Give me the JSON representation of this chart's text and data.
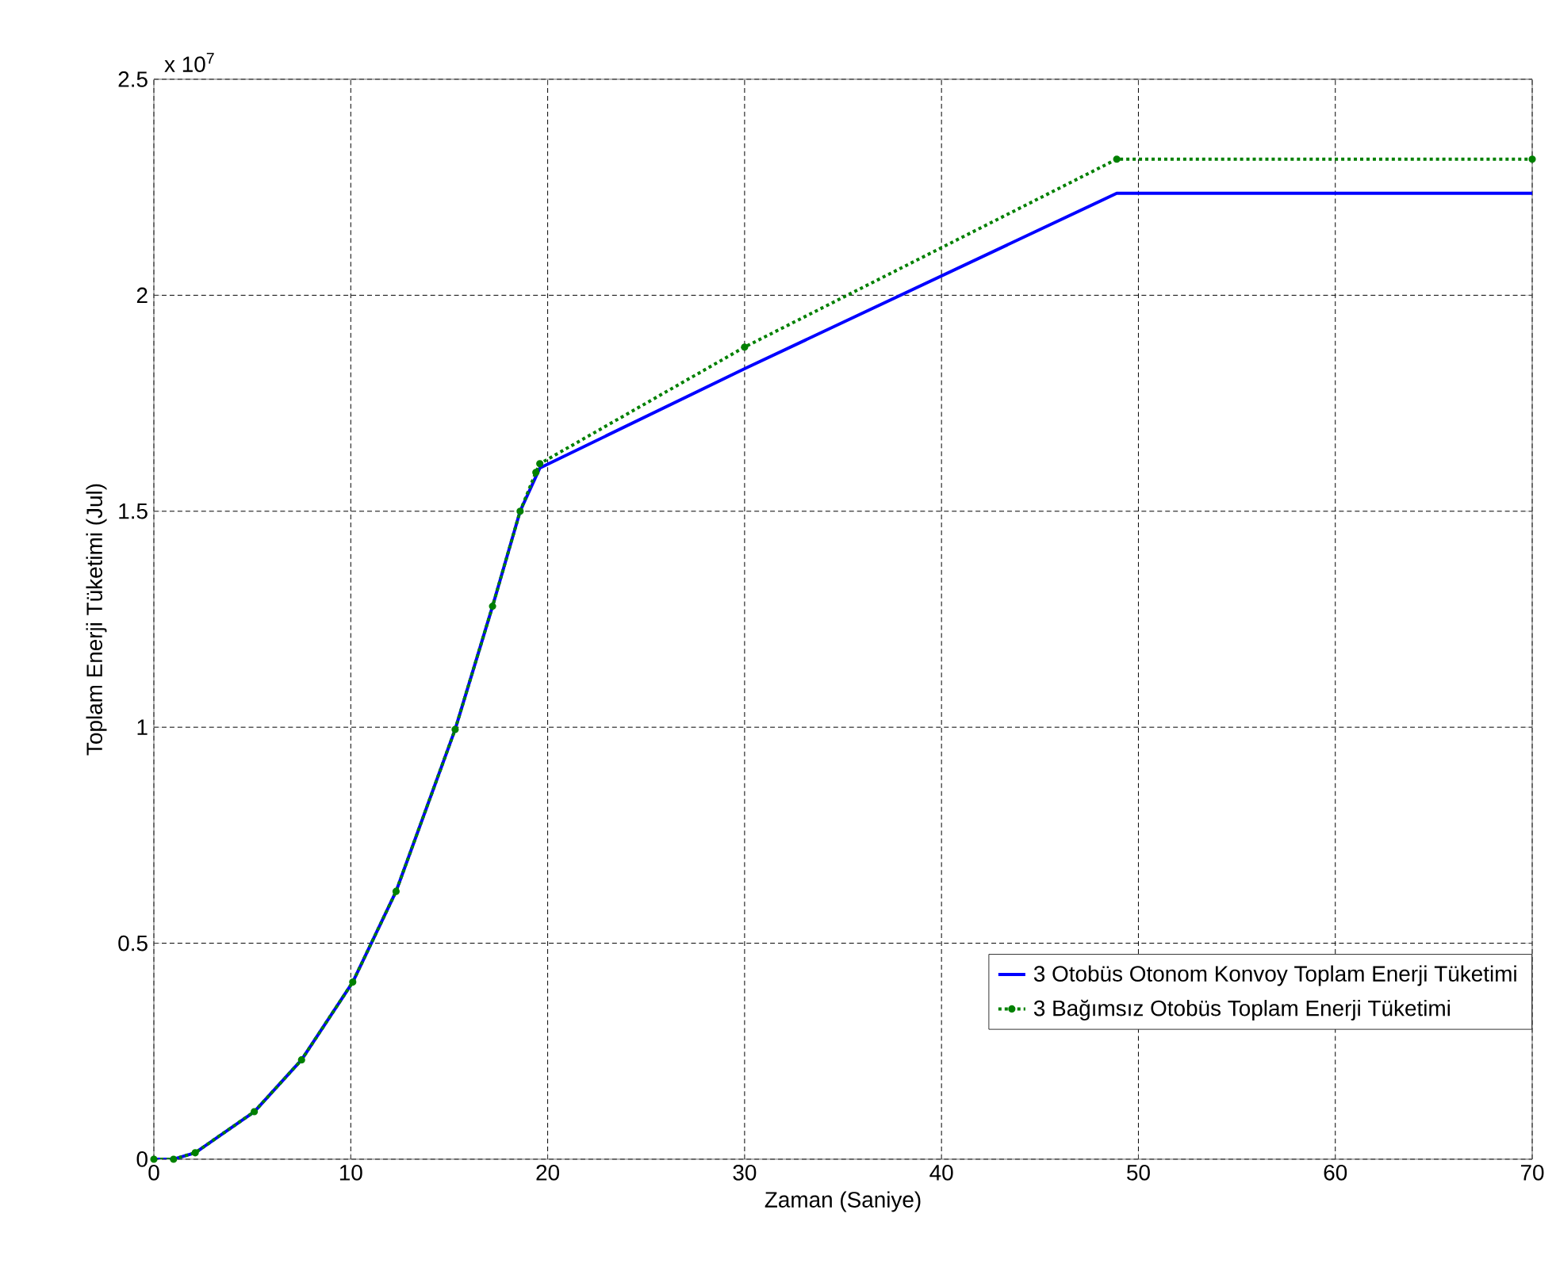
{
  "chart_data": {
    "type": "line",
    "xlabel": "Zaman (Saniye)",
    "ylabel": "Toplam Enerji Tüketimi (Jul)",
    "annotations": [
      "x 10$^{7}$"
    ],
    "xlim": [
      0,
      70
    ],
    "xticks": [
      0,
      10,
      20,
      30,
      40,
      50,
      60,
      70
    ],
    "ylim": [
      0,
      2.5
    ],
    "yticks": [
      0,
      0.5,
      1,
      1.5,
      2,
      2.5
    ],
    "grid": true,
    "legend": "bottom right",
    "series": [
      {
        "name": "3 Otobüs Otonom Konvoy Toplam Enerji Tüketimi",
        "color": "#0000ff",
        "line_style": "solid",
        "marker": "none",
        "x": [
          0,
          1,
          2.1,
          5.1,
          7.5,
          10.1,
          12.3,
          15.3,
          17.2,
          18.6,
          19.4,
          19.6,
          30,
          48.9,
          70
        ],
        "values": [
          0,
          0,
          0.015,
          0.11,
          0.23,
          0.41,
          0.62,
          0.995,
          1.28,
          1.5,
          1.58,
          1.6,
          1.83,
          2.236,
          2.236
        ]
      },
      {
        "name": "3 Bağımsız Otobüs Toplam Enerji Tüketimi",
        "color": "#008000",
        "line_style": "dotted",
        "marker": "circle",
        "x": [
          0,
          1,
          2.1,
          5.1,
          7.5,
          10.1,
          12.3,
          15.3,
          17.2,
          18.6,
          19.4,
          19.6,
          30,
          48.9,
          70
        ],
        "values": [
          0,
          0,
          0.015,
          0.11,
          0.23,
          0.41,
          0.62,
          0.995,
          1.28,
          1.5,
          1.59,
          1.61,
          1.88,
          2.315,
          2.315
        ]
      }
    ]
  }
}
